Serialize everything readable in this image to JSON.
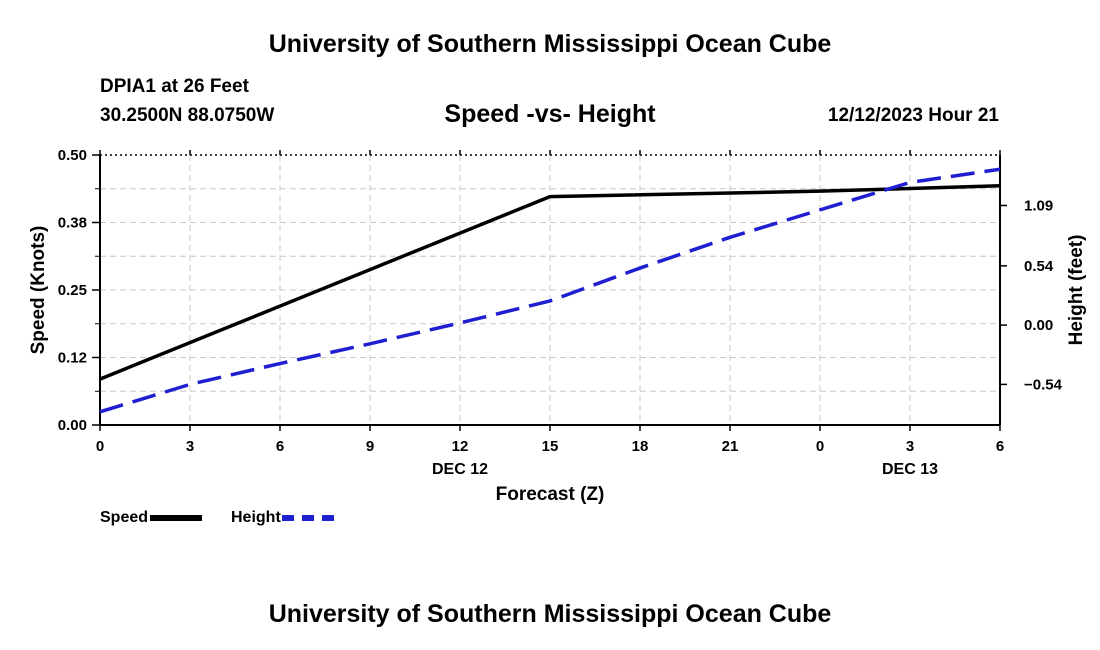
{
  "header": {
    "main_title": "University of Southern Mississippi Ocean Cube",
    "station": "DPIA1 at 26 Feet",
    "coords": "30.2500N  88.0750W",
    "datetime": "12/12/2023 Hour 21"
  },
  "footer": {
    "title": "University of Southern Mississippi Ocean Cube"
  },
  "legend": [
    {
      "label": "Speed",
      "color": "#000000",
      "style": "solid"
    },
    {
      "label": "Height",
      "color": "#1f1fd1",
      "style": "dashed"
    }
  ],
  "chart_data": {
    "type": "line",
    "title": "Speed -vs- Height",
    "xlabel": "Forecast (Z)",
    "ylabel": "Speed (Knots)",
    "y2label": "Height (feet)",
    "x": [
      0,
      3,
      6,
      9,
      12,
      15,
      18,
      21,
      24,
      27,
      30
    ],
    "xlim": [
      0,
      30
    ],
    "x_tick_labels": [
      "0",
      "3",
      "6",
      "9",
      "12",
      "15",
      "18",
      "21",
      "0",
      "3",
      "6"
    ],
    "date_labels": [
      {
        "x": 12,
        "label": "DEC 12"
      },
      {
        "x": 27,
        "label": "DEC 13"
      }
    ],
    "ylim": [
      0,
      0.5
    ],
    "y_ticks": [
      0.0,
      0.125,
      0.25,
      0.375,
      0.5
    ],
    "y_tick_labels": [
      "0.00",
      "0.12",
      "0.25",
      "0.38",
      "0.50"
    ],
    "y2lim": [
      -0.91,
      1.55
    ],
    "y2_ticks": [
      -0.54,
      0.0,
      0.54,
      1.09
    ],
    "y2_tick_labels": [
      "−0.54",
      "0.00",
      "0.54",
      "1.09"
    ],
    "grid": true,
    "series": [
      {
        "name": "Speed",
        "axis": "left",
        "color": "#000000",
        "style": "solid",
        "x": [
          0,
          15,
          24,
          30
        ],
        "values": [
          0.085,
          0.423,
          0.433,
          0.443
        ]
      },
      {
        "name": "Height",
        "axis": "right",
        "color": "#1f1fd1",
        "style": "dashed",
        "x": [
          0,
          3,
          6,
          9,
          12,
          15,
          18,
          21,
          24,
          27,
          30
        ],
        "values": [
          -0.79,
          -0.54,
          -0.35,
          -0.17,
          0.02,
          0.22,
          0.52,
          0.8,
          1.05,
          1.3,
          1.42
        ]
      }
    ]
  }
}
